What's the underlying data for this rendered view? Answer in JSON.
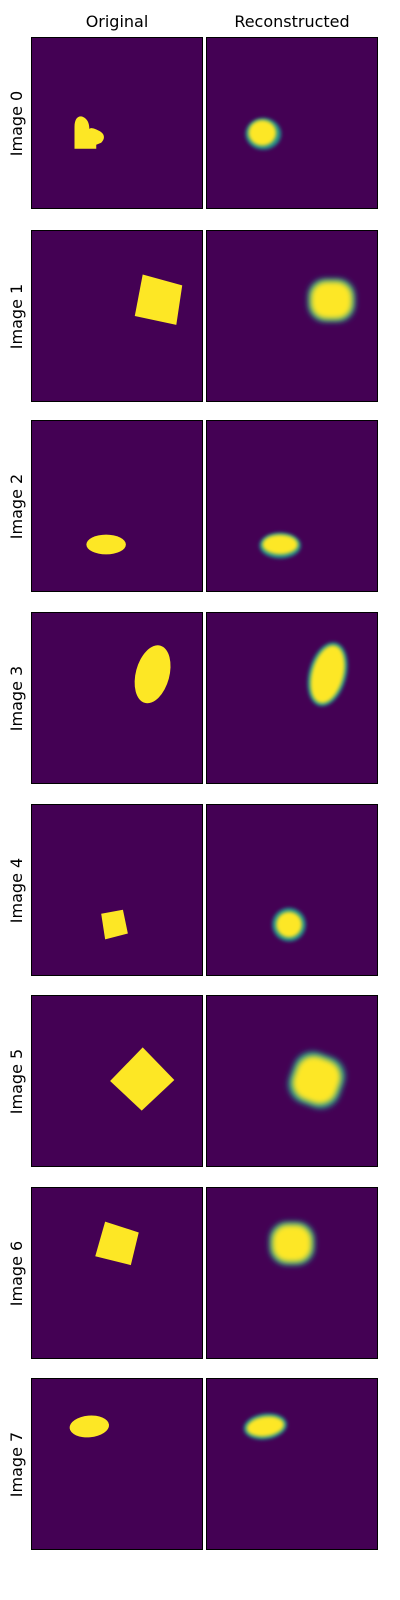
{
  "headers": {
    "original": "Original",
    "reconstructed": "Reconstructed"
  },
  "colors": {
    "background": "#440154",
    "shape": "#fde725",
    "halo": "#21918c"
  },
  "rows": [
    {
      "label": "Image 0"
    },
    {
      "label": "Image 1"
    },
    {
      "label": "Image 2"
    },
    {
      "label": "Image 3"
    },
    {
      "label": "Image 4"
    },
    {
      "label": "Image 5"
    },
    {
      "label": "Image 6"
    },
    {
      "label": "Image 7"
    }
  ]
}
